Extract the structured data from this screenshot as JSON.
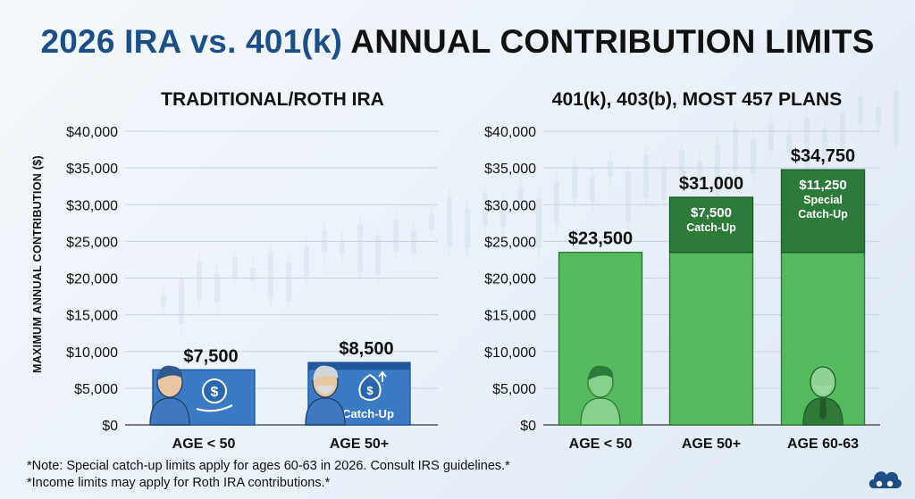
{
  "title": {
    "part1": "2026 IRA vs. 401(k)",
    "part2": "ANNUAL CONTRIBUTION LIMITS"
  },
  "y_axis_label": "MAXIMUM ANNUAL CONTRIBUTION ($)",
  "notes": {
    "note1": "*Note: Special catch-up limits apply for ages 60-63 in 2026. Consult IRS guidelines.*",
    "note2": "*Income limits may apply for Roth IRA contributions.*"
  },
  "colors": {
    "ira_bar": "#3b7bc4",
    "ira_bar_dark": "#23579c",
    "plan_base": "#55b95e",
    "plan_catchup": "#2e7a3a",
    "text_dark": "#111111",
    "title_accent": "#1c4f86",
    "grid": "#c9d3df"
  },
  "icons": {
    "ira_bar_1": "dollar-coin-hand-icon",
    "ira_bar_2": "money-bag-icon",
    "ira_person_1": "young-person-icon",
    "ira_person_2": "older-person-icon",
    "plan_person_1": "person-icon",
    "plan_person_3": "elderly-person-icon",
    "logo": "cloud-logo-icon"
  },
  "chart_data": [
    {
      "type": "bar",
      "title": "TRADITIONAL/ROTH IRA",
      "ylabel": "MAXIMUM ANNUAL CONTRIBUTION ($)",
      "ylim": [
        0,
        40000
      ],
      "yticks": [
        0,
        5000,
        10000,
        15000,
        20000,
        25000,
        30000,
        35000,
        40000
      ],
      "ytick_labels": [
        "$0",
        "$5,000",
        "$10,000",
        "$15,000",
        "$20,000",
        "$25,000",
        "$30,000",
        "$35,000",
        "$40,000"
      ],
      "categories": [
        "AGE < 50",
        "AGE 50+"
      ],
      "series": [
        {
          "key": "base",
          "values": [
            7500,
            7500
          ]
        },
        {
          "key": "catchup",
          "values": [
            0,
            1000
          ]
        }
      ],
      "total_labels": [
        "$7,500",
        "$8,500"
      ],
      "segment_labels": [
        [],
        [
          "Catch-Up"
        ]
      ],
      "grid": true
    },
    {
      "type": "bar",
      "title": "401(k), 403(b), MOST 457 PLANS",
      "ylim": [
        0,
        40000
      ],
      "yticks": [
        0,
        5000,
        10000,
        15000,
        20000,
        25000,
        30000,
        35000,
        40000
      ],
      "ytick_labels": [
        "$0",
        "$5,000",
        "$10,000",
        "$15,000",
        "$20,000",
        "$25,000",
        "$30,000",
        "$35,000",
        "$40,000"
      ],
      "categories": [
        "AGE < 50",
        "AGE 50+",
        "AGE 60-63"
      ],
      "series": [
        {
          "key": "base",
          "values": [
            23500,
            23500,
            23500
          ]
        },
        {
          "key": "catchup",
          "values": [
            0,
            7500,
            11250
          ]
        }
      ],
      "total_labels": [
        "$23,500",
        "$31,000",
        "$34,750"
      ],
      "segment_labels": [
        [],
        [
          "$7,500",
          "Catch-Up"
        ],
        [
          "$11,250",
          "Special",
          "Catch-Up"
        ]
      ],
      "grid": true
    }
  ]
}
